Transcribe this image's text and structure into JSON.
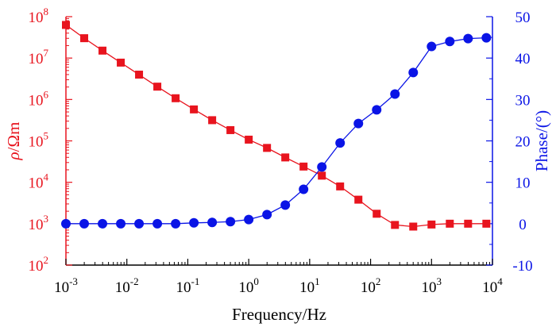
{
  "chart_data": {
    "type": "line",
    "xlabel": "Frequency/Hz",
    "ylabel_left": {
      "symbol": "ρ",
      "unit": "/Ωm"
    },
    "ylabel_right": "Phase/(°)",
    "x_scale": "log",
    "xlim_log10": [
      -3,
      4
    ],
    "x_ticks": [
      {
        "base": "10",
        "exp": "-3"
      },
      {
        "base": "10",
        "exp": "-2"
      },
      {
        "base": "10",
        "exp": "-1"
      },
      {
        "base": "10",
        "exp": "0"
      },
      {
        "base": "10",
        "exp": "1"
      },
      {
        "base": "10",
        "exp": "2"
      },
      {
        "base": "10",
        "exp": "3"
      },
      {
        "base": "10",
        "exp": "4"
      }
    ],
    "left_axis": {
      "scale": "log",
      "ylim_log10": [
        2,
        8
      ],
      "ticks": [
        {
          "base": "10",
          "exp": "2"
        },
        {
          "base": "10",
          "exp": "3"
        },
        {
          "base": "10",
          "exp": "4"
        },
        {
          "base": "10",
          "exp": "5"
        },
        {
          "base": "10",
          "exp": "6"
        },
        {
          "base": "10",
          "exp": "7"
        },
        {
          "base": "10",
          "exp": "8"
        }
      ]
    },
    "right_axis": {
      "scale": "linear",
      "ylim": [
        -10,
        50
      ],
      "ticks": [
        "-10",
        "0",
        "10",
        "20",
        "30",
        "40",
        "50"
      ]
    },
    "series": [
      {
        "name": "resistivity",
        "axis": "left",
        "marker": "square",
        "color": "#e8141e",
        "log10_frequency": [
          -3,
          -2.7,
          -2.4,
          -2.1,
          -1.8,
          -1.5,
          -1.2,
          -0.9,
          -0.6,
          -0.3,
          0,
          0.3,
          0.6,
          0.9,
          1.2,
          1.5,
          1.8,
          2.1,
          2.4,
          2.7,
          3,
          3.3,
          3.6,
          3.9
        ],
        "log10_rho": [
          7.8,
          7.48,
          7.18,
          6.89,
          6.6,
          6.31,
          6.03,
          5.76,
          5.5,
          5.26,
          5.03,
          4.83,
          4.6,
          4.38,
          4.16,
          3.9,
          3.58,
          3.24,
          2.97,
          2.93,
          2.98,
          3.0,
          3.0,
          3.0
        ]
      },
      {
        "name": "phase",
        "axis": "right",
        "marker": "circle",
        "color": "#0a14e6",
        "log10_frequency": [
          -3,
          -2.7,
          -2.4,
          -2.1,
          -1.8,
          -1.5,
          -1.2,
          -0.9,
          -0.6,
          -0.3,
          0,
          0.3,
          0.6,
          0.9,
          1.2,
          1.5,
          1.8,
          2.1,
          2.4,
          2.7,
          3,
          3.3,
          3.6,
          3.9
        ],
        "phase_deg": [
          0,
          0,
          0,
          0,
          0,
          0,
          0,
          0.2,
          0.3,
          0.5,
          1.0,
          2.2,
          4.5,
          8.3,
          13.7,
          19.5,
          24.2,
          27.5,
          31.3,
          36.5,
          42.8,
          44.0,
          44.7,
          44.9
        ]
      }
    ],
    "colors": {
      "left_axis": "#e8141e",
      "right_axis": "#0a14e6",
      "bottom_axis": "#000000"
    }
  }
}
